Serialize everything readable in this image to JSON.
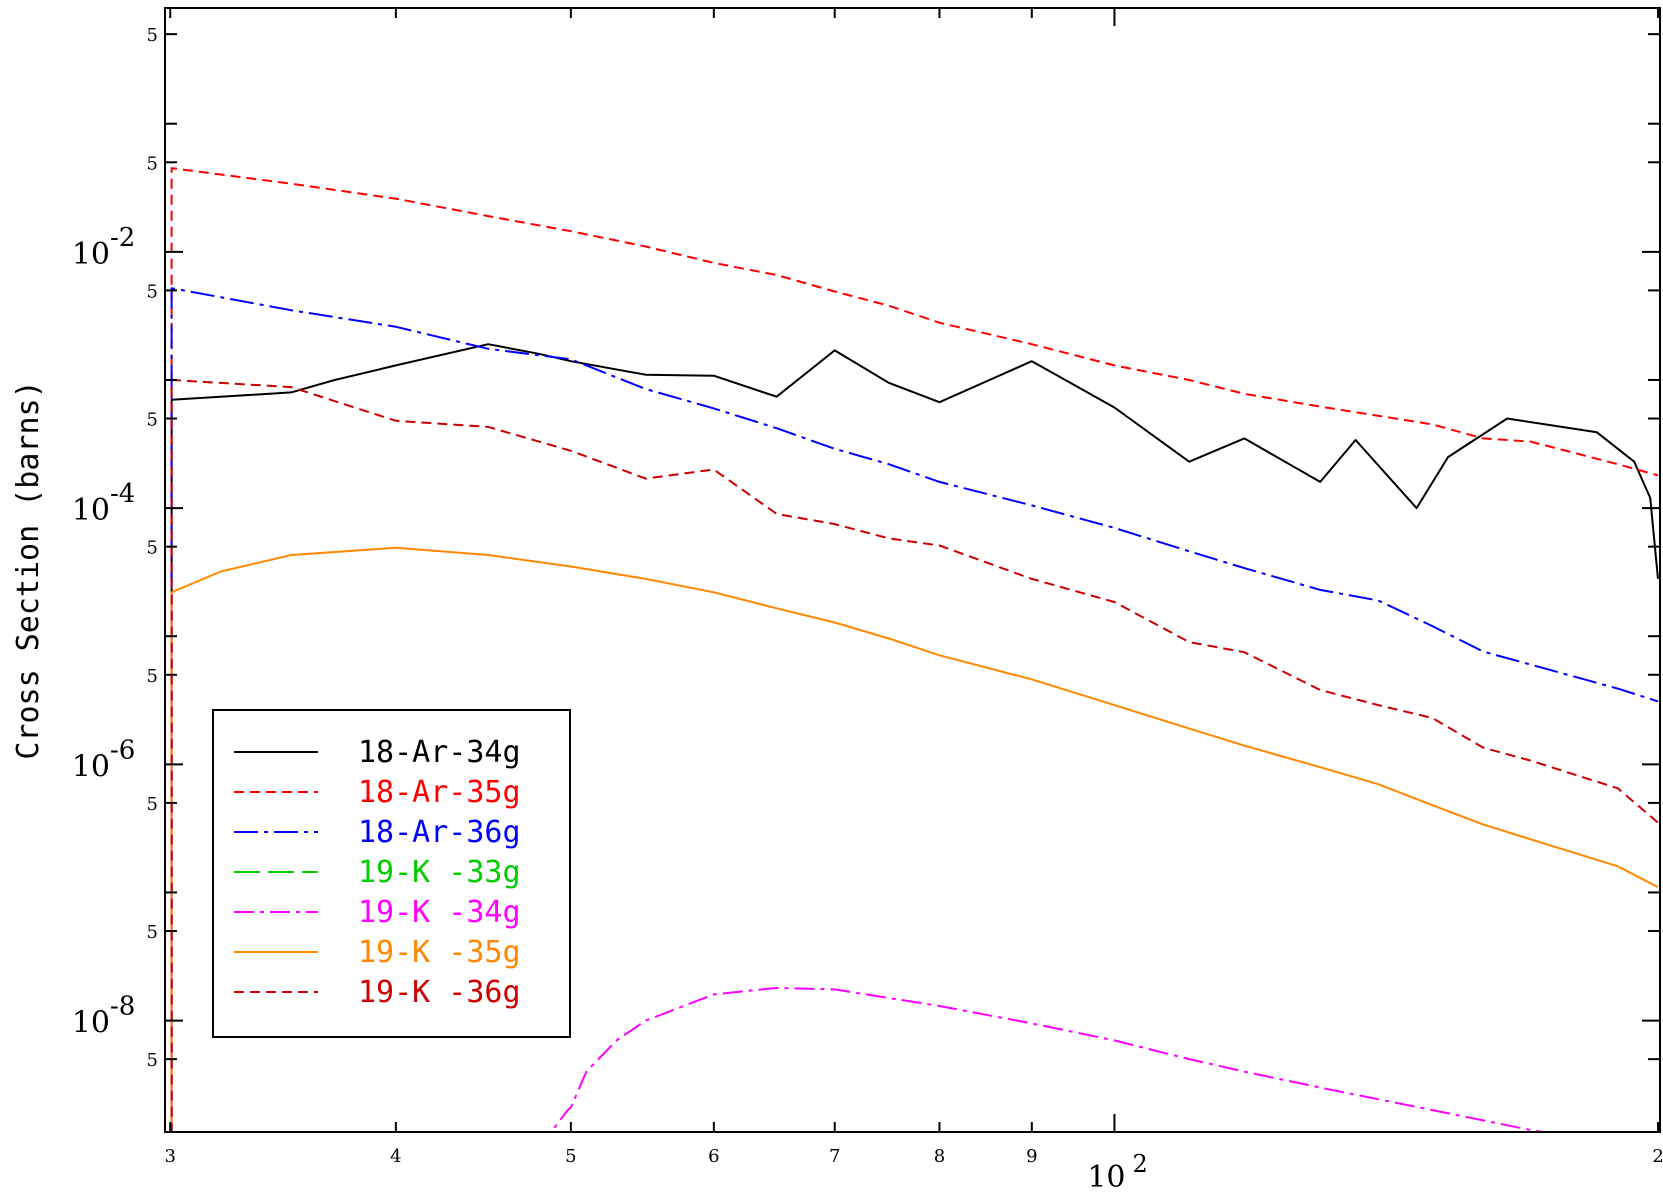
{
  "chart_data": {
    "type": "line",
    "title": "",
    "xlabel": "",
    "ylabel": "Cross Section (barns)",
    "x_scale": "log",
    "y_scale": "log",
    "xlim": [
      29.8,
      200.5
    ],
    "ylim": [
      1.35e-09,
      0.8
    ],
    "grid": false,
    "legend_placement": "bottom-left",
    "x_ticks": [
      {
        "value": 30,
        "label": "3"
      },
      {
        "value": 40,
        "label": "4"
      },
      {
        "value": 50,
        "label": "5"
      },
      {
        "value": 60,
        "label": "6"
      },
      {
        "value": 70,
        "label": "7"
      },
      {
        "value": 80,
        "label": "8"
      },
      {
        "value": 90,
        "label": "9"
      },
      {
        "value": 200,
        "label": "2"
      }
    ],
    "x_major_label": {
      "value": 100,
      "base": "10",
      "exp": "2"
    },
    "y_major_labels": [
      {
        "value": 0.01,
        "base": "10",
        "exp": "-2"
      },
      {
        "value": 0.0001,
        "base": "10",
        "exp": "-4"
      },
      {
        "value": 1e-06,
        "base": "10",
        "exp": "-6"
      },
      {
        "value": 1e-08,
        "base": "10",
        "exp": "-8"
      }
    ],
    "y_minor_labels": [
      {
        "value": 0.5,
        "label": "5"
      },
      {
        "value": 0.05,
        "label": "5"
      },
      {
        "value": 0.005,
        "label": "5"
      },
      {
        "value": 0.0005,
        "label": "5"
      },
      {
        "value": 5e-05,
        "label": "5"
      },
      {
        "value": 5e-06,
        "label": "5"
      },
      {
        "value": 5e-07,
        "label": "5"
      },
      {
        "value": 5e-08,
        "label": "5"
      },
      {
        "value": 5e-09,
        "label": "5"
      }
    ],
    "series": [
      {
        "name": "18-Ar-34g",
        "color": "#000000",
        "dash": "",
        "x": [
          30.05,
          30.05,
          35,
          37,
          40,
          45,
          48,
          50,
          55,
          60,
          65,
          70,
          75,
          80,
          90,
          100,
          110,
          118,
          130,
          136,
          147,
          153,
          165,
          185,
          194,
          198,
          200
        ],
        "y": [
          1e-09,
          0.0007,
          0.0008,
          0.001,
          0.0013,
          0.0019,
          0.0016,
          0.0014,
          0.0011,
          0.00108,
          0.00074,
          0.0017,
          0.00095,
          0.00067,
          0.0014,
          0.00061,
          0.00023,
          0.00035,
          0.00016,
          0.00034,
          0.0001,
          0.00025,
          0.0005,
          0.00039,
          0.00023,
          0.00012,
          2.8e-05
        ]
      },
      {
        "name": "18-Ar-35g",
        "color": "#ff0000",
        "dash": "10 6",
        "x": [
          30.05,
          30.05,
          35,
          40,
          45,
          50,
          55,
          60,
          65,
          70,
          75,
          80,
          90,
          100,
          110,
          118,
          130,
          150,
          160,
          170,
          190,
          200
        ],
        "y": [
          1e-09,
          0.045,
          0.034,
          0.026,
          0.019,
          0.0145,
          0.011,
          0.0082,
          0.0066,
          0.0049,
          0.0038,
          0.0028,
          0.0019,
          0.0013,
          0.001,
          0.00078,
          0.00062,
          0.00045,
          0.00035,
          0.00033,
          0.00022,
          0.00018
        ]
      },
      {
        "name": "18-Ar-36g",
        "color": "#0000ff",
        "dash": "24 6 4 6",
        "x": [
          30.05,
          30.05,
          35,
          40,
          45,
          50,
          55,
          60,
          65,
          70,
          75,
          80,
          90,
          100,
          110,
          118,
          130,
          140,
          150,
          160,
          170,
          190,
          200
        ],
        "y": [
          1e-09,
          0.0052,
          0.0035,
          0.0026,
          0.00175,
          0.00145,
          0.00085,
          0.0006,
          0.00042,
          0.00029,
          0.00022,
          0.00016,
          0.000105,
          7e-05,
          4.6e-05,
          3.4e-05,
          2.3e-05,
          1.9e-05,
          1.2e-05,
          7.6e-06,
          6e-06,
          3.9e-06,
          3.1e-06
        ]
      },
      {
        "name": "19-K -33g",
        "color": "#00cc00",
        "dash": "26 8",
        "x": [],
        "y": []
      },
      {
        "name": "19-K -34g",
        "color": "#ff00ff",
        "dash": "20 6 4 6",
        "x": [
          48,
          49.8,
          50,
          51,
          53,
          55,
          60,
          65,
          70,
          75,
          80,
          90,
          100,
          110,
          118,
          130,
          150,
          170,
          190,
          200
        ],
        "y": [
          1e-09,
          2e-09,
          2.1e-09,
          4e-09,
          7e-09,
          1e-08,
          1.6e-08,
          1.8e-08,
          1.75e-08,
          1.5e-08,
          1.3e-08,
          9.5e-09,
          7e-09,
          5e-09,
          4e-09,
          3e-09,
          2e-09,
          1.4e-09,
          1.1e-09,
          1e-09
        ]
      },
      {
        "name": "19-K -35g",
        "color": "#ff8800",
        "dash": "",
        "x": [
          30.05,
          30.05,
          32,
          35,
          40,
          45,
          50,
          55,
          60,
          65,
          70,
          75,
          80,
          90,
          100,
          110,
          118,
          130,
          140,
          150,
          160,
          170,
          190,
          200
        ],
        "y": [
          1e-09,
          2.2e-05,
          3.2e-05,
          4.3e-05,
          4.9e-05,
          4.3e-05,
          3.5e-05,
          2.8e-05,
          2.2e-05,
          1.65e-05,
          1.28e-05,
          9.6e-06,
          7.1e-06,
          4.6e-06,
          2.9e-06,
          1.9e-06,
          1.4e-06,
          9.5e-07,
          7e-07,
          4.8e-07,
          3.4e-07,
          2.6e-07,
          1.6e-07,
          1.1e-07
        ]
      },
      {
        "name": "19-K -36g",
        "color": "#cc0000",
        "dash": "10 6",
        "x": [
          30.05,
          30.05,
          35,
          40,
          45,
          50,
          55,
          60,
          65,
          70,
          75,
          80,
          90,
          100,
          110,
          118,
          130,
          140,
          150,
          160,
          170,
          190,
          200
        ],
        "y": [
          1e-09,
          0.001,
          0.00088,
          0.00048,
          0.00043,
          0.00028,
          0.00017,
          0.0002,
          9e-05,
          7.5e-05,
          5.8e-05,
          5.1e-05,
          2.8e-05,
          1.85e-05,
          9e-06,
          7.5e-06,
          3.8e-06,
          2.9e-06,
          2.3e-06,
          1.35e-06,
          1.07e-06,
          6.5e-07,
          3.5e-07
        ]
      }
    ]
  }
}
